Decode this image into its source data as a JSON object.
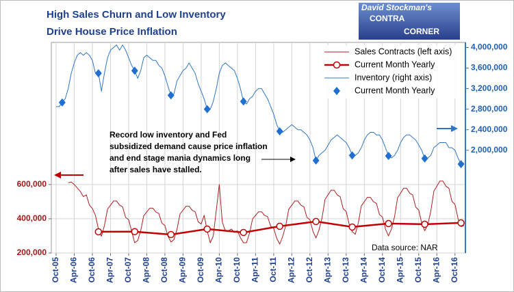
{
  "chart_data": {
    "type": "line",
    "title": [
      "High Sales Churn and Low Inventory",
      "Drive House Price Inflation"
    ],
    "logo": [
      "David Stockman's",
      "CONTRA",
      "CORNER"
    ],
    "annotation": [
      "Record low inventory and Fed",
      "subsidized demand cause price inflation",
      "and end stage mania dynamics long",
      "after sales have stalled."
    ],
    "source": "Data source: NAR",
    "categories": [
      "Oct-05",
      null,
      null,
      null,
      null,
      null,
      "Apr-06",
      null,
      null,
      null,
      null,
      null,
      "Oct-06",
      null,
      null,
      null,
      null,
      null,
      "Apr-07",
      null,
      null,
      null,
      null,
      null,
      "Oct-07",
      null,
      null,
      null,
      null,
      null,
      "Apr-08",
      null,
      null,
      null,
      null,
      null,
      "Oct-08",
      null,
      null,
      null,
      null,
      null,
      "Apr-09",
      null,
      null,
      null,
      null,
      null,
      "Oct-09",
      null,
      null,
      null,
      null,
      null,
      "Apr-10",
      null,
      null,
      null,
      null,
      null,
      "Oct-10",
      null,
      null,
      null,
      null,
      null,
      "Apr-11",
      null,
      null,
      null,
      null,
      null,
      "Oct-11",
      null,
      null,
      null,
      null,
      null,
      "Apr-12",
      null,
      null,
      null,
      null,
      null,
      "Oct-12",
      null,
      null,
      null,
      null,
      null,
      "Apr-13",
      null,
      null,
      null,
      null,
      null,
      "Oct-13",
      null,
      null,
      null,
      null,
      null,
      "Apr-14",
      null,
      null,
      null,
      null,
      null,
      "Oct-14",
      null,
      null,
      null,
      null,
      null,
      "Apr-15",
      null,
      null,
      null,
      null,
      null,
      "Oct-15",
      null,
      null,
      null,
      null,
      null,
      "Apr-16",
      null,
      null,
      null,
      null,
      null,
      "Oct-16",
      null,
      null,
      null
    ],
    "ylim": [
      200000,
      1430000
    ],
    "yticks": [
      {
        "value": 200000,
        "label": "200,000"
      },
      {
        "value": 400000,
        "label": "400,000"
      },
      {
        "value": 600000,
        "label": "600,000"
      }
    ],
    "y2lim": [
      0,
      4100000
    ],
    "y2ticks": [
      {
        "value": 2000000,
        "label": "2,000,000"
      },
      {
        "value": 2400000,
        "label": "2,400,000"
      },
      {
        "value": 2800000,
        "label": "2,800,000"
      },
      {
        "value": 3200000,
        "label": "3,200,000"
      },
      {
        "value": 3600000,
        "label": "3,600,000"
      },
      {
        "value": 4000000,
        "label": "4,000,000"
      }
    ],
    "grid": true,
    "legend": "upper right",
    "series": [
      {
        "name": "Sales Contracts (left axis)",
        "color": "#b01c1c",
        "values": [
          null,
          null,
          null,
          null,
          610000,
          615000,
          600000,
          580000,
          560000,
          530000,
          540000,
          480000,
          460000,
          420000,
          340000,
          298000,
          360000,
          456000,
          480000,
          504000,
          504000,
          480000,
          470000,
          408000,
          394000,
          326000,
          260000,
          273000,
          330000,
          418000,
          440000,
          462000,
          462000,
          440000,
          431000,
          374000,
          361000,
          299000,
          264000,
          279000,
          338000,
          428000,
          450000,
          473000,
          473000,
          450000,
          441000,
          383000,
          369000,
          420000,
          330000,
          260000,
          300000,
          450000,
          600000,
          380000,
          330000,
          330000,
          340000,
          320000,
          330000,
          290000,
          260000,
          260000,
          315000,
          399000,
          420000,
          441000,
          441000,
          420000,
          412000,
          357000,
          344000,
          286000,
          252000,
          298000,
          360000,
          456000,
          480000,
          504000,
          504000,
          480000,
          470000,
          408000,
          394000,
          326000,
          288000,
          335000,
          405000,
          513000,
          540000,
          567000,
          567000,
          540000,
          529000,
          459000,
          443000,
          367000,
          324000,
          310000,
          375000,
          475000,
          500000,
          525000,
          525000,
          500000,
          490000,
          425000,
          410000,
          340000,
          300000,
          341000,
          413000,
          523000,
          550000,
          578000,
          578000,
          550000,
          539000,
          468000,
          451000,
          374000,
          330000,
          366000,
          443000,
          561000,
          590000,
          620000,
          620000,
          590000,
          578000,
          502000,
          484000,
          401000,
          354000,
          360000
        ]
      },
      {
        "name": "Current Month Yearly",
        "color": "#c00000",
        "marker": "circle-open",
        "line": true,
        "connect_gaps": true,
        "values": [
          null,
          null,
          null,
          null,
          null,
          null,
          null,
          null,
          null,
          null,
          null,
          null,
          null,
          null,
          324000,
          null,
          null,
          null,
          null,
          null,
          null,
          null,
          null,
          null,
          null,
          null,
          325000,
          null,
          null,
          null,
          null,
          null,
          null,
          null,
          null,
          null,
          null,
          null,
          308000,
          null,
          null,
          null,
          null,
          null,
          null,
          null,
          null,
          null,
          null,
          null,
          340000,
          null,
          null,
          null,
          null,
          null,
          null,
          null,
          null,
          null,
          null,
          null,
          320000,
          null,
          null,
          null,
          null,
          null,
          null,
          null,
          null,
          null,
          null,
          null,
          356000,
          null,
          null,
          null,
          null,
          null,
          null,
          null,
          null,
          null,
          null,
          null,
          384000,
          null,
          null,
          null,
          null,
          null,
          null,
          null,
          null,
          null,
          null,
          null,
          352000,
          null,
          null,
          null,
          null,
          null,
          null,
          null,
          null,
          null,
          null,
          null,
          372000,
          null,
          null,
          null,
          null,
          null,
          null,
          null,
          null,
          null,
          null,
          null,
          368000,
          null,
          null,
          null,
          null,
          null,
          null,
          null,
          null,
          null,
          null,
          null,
          376000,
          null
        ]
      },
      {
        "name": "Inventory (right axis)",
        "color": "#2e75c6",
        "axis": "y2",
        "values": [
          2850000,
          2850000,
          2930000,
          3000000,
          3200000,
          3500000,
          3700000,
          3850000,
          3900000,
          3850000,
          3900000,
          3850000,
          3750000,
          3500000,
          3500000,
          3150000,
          3500000,
          3800000,
          3950000,
          4000000,
          4050000,
          3950000,
          4050000,
          3950000,
          3800000,
          3650000,
          3550000,
          3400000,
          3550000,
          3800000,
          3850000,
          3800000,
          3750000,
          3750000,
          3650000,
          3600000,
          3450000,
          3250000,
          3070000,
          3100000,
          3350000,
          3450000,
          3550000,
          3600000,
          3700000,
          3600000,
          3500000,
          3300000,
          3150000,
          3000000,
          2800000,
          2800000,
          2950000,
          3200000,
          3500000,
          3650000,
          3700000,
          3650000,
          3600000,
          3550000,
          3400000,
          3200000,
          2950000,
          2900000,
          3000000,
          3050000,
          3150000,
          3200000,
          3200000,
          3100000,
          3000000,
          2850000,
          2700000,
          2500000,
          2370000,
          2350000,
          2400000,
          2450000,
          2500000,
          2450000,
          2400000,
          2400000,
          2350000,
          2300000,
          2200000,
          2050000,
          1800000,
          1900000,
          1950000,
          2000000,
          2100000,
          2200000,
          2250000,
          2300000,
          2250000,
          2200000,
          2150000,
          2050000,
          1900000,
          1900000,
          1950000,
          2050000,
          2200000,
          2300000,
          2350000,
          2350000,
          2300000,
          2300000,
          2200000,
          2050000,
          1890000,
          1850000,
          1900000,
          2000000,
          2150000,
          2250000,
          2300000,
          2300000,
          2250000,
          2200000,
          2100000,
          2000000,
          1840000,
          1850000,
          1900000,
          2050000,
          2100000,
          2150000,
          2150000,
          2150000,
          2050000,
          2050000,
          2000000,
          1850000,
          1730000,
          1750000
        ]
      },
      {
        "name": "Current Month Yearly",
        "color": "#1f6fd0",
        "axis": "y2",
        "marker": "diamond",
        "line": false,
        "values": [
          null,
          null,
          2930000,
          null,
          null,
          null,
          null,
          null,
          null,
          null,
          null,
          null,
          null,
          null,
          3500000,
          null,
          null,
          null,
          null,
          null,
          null,
          null,
          null,
          null,
          null,
          null,
          3550000,
          null,
          null,
          null,
          null,
          null,
          null,
          null,
          null,
          null,
          null,
          null,
          3070000,
          null,
          null,
          null,
          null,
          null,
          null,
          null,
          null,
          null,
          null,
          null,
          2800000,
          null,
          null,
          null,
          null,
          null,
          null,
          null,
          null,
          null,
          null,
          null,
          2950000,
          null,
          null,
          null,
          null,
          null,
          null,
          null,
          null,
          null,
          null,
          null,
          2370000,
          null,
          null,
          null,
          null,
          null,
          null,
          null,
          null,
          null,
          null,
          null,
          1800000,
          null,
          null,
          null,
          null,
          null,
          null,
          null,
          null,
          null,
          null,
          null,
          1900000,
          null,
          null,
          null,
          null,
          null,
          null,
          null,
          null,
          null,
          null,
          null,
          1890000,
          null,
          null,
          null,
          null,
          null,
          null,
          null,
          null,
          null,
          null,
          null,
          1840000,
          null,
          null,
          null,
          null,
          null,
          null,
          null,
          null,
          null,
          null,
          null,
          1730000,
          null
        ]
      }
    ]
  }
}
